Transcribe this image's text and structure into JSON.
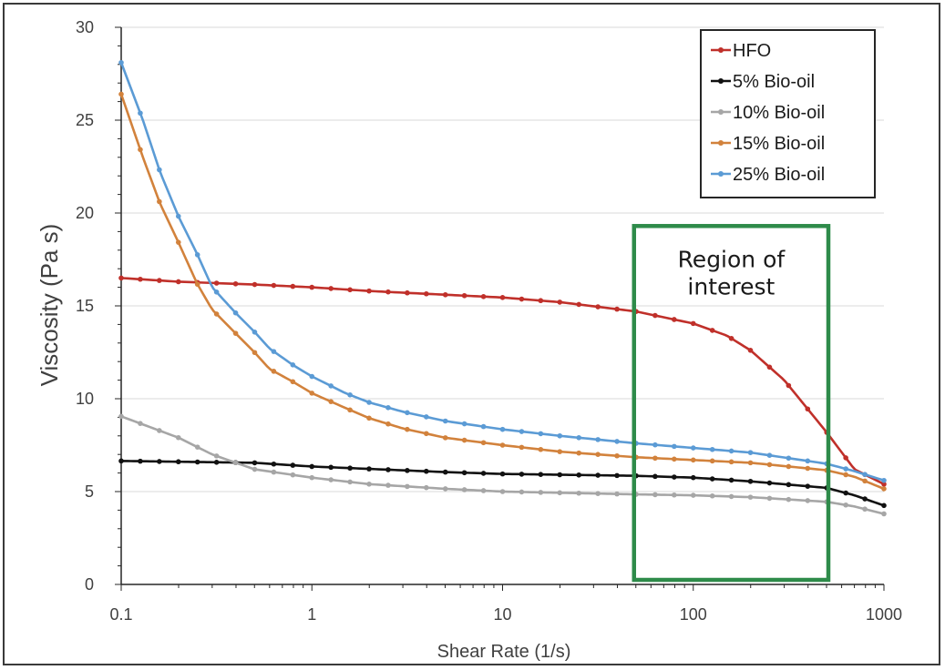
{
  "chart_data": {
    "type": "line",
    "title": "",
    "xlabel": "Shear Rate (1/s)",
    "ylabel": "Viscosity (Pa s)",
    "x_scale": "log",
    "xlim": [
      0.1,
      1000
    ],
    "ylim": [
      0,
      30
    ],
    "x_ticks": [
      0.1,
      1,
      10,
      100,
      1000
    ],
    "x_tick_labels": [
      "0.1",
      "1",
      "10",
      "100",
      "1000"
    ],
    "y_ticks": [
      0,
      5,
      10,
      15,
      20,
      25,
      30
    ],
    "y_tick_labels": [
      "0",
      "5",
      "10",
      "15",
      "20",
      "25",
      "30"
    ],
    "grid": "horizontal",
    "legend_position": "top-right",
    "series": [
      {
        "name": "HFO",
        "color": "#c0302a",
        "points": [
          [
            0.1,
            16.5
          ],
          [
            0.2,
            16.3
          ],
          [
            0.5,
            16.15
          ],
          [
            1,
            16.0
          ],
          [
            2,
            15.8
          ],
          [
            5,
            15.6
          ],
          [
            10,
            15.45
          ],
          [
            20,
            15.2
          ],
          [
            50,
            14.7
          ],
          [
            100,
            14.05
          ],
          [
            150,
            13.4
          ],
          [
            200,
            12.6
          ],
          [
            300,
            11.0
          ],
          [
            500,
            8.2
          ],
          [
            700,
            6.2
          ],
          [
            1000,
            5.4
          ]
        ]
      },
      {
        "name": "5% Bio-oil",
        "color": "#111111",
        "points": [
          [
            0.1,
            6.65
          ],
          [
            0.5,
            6.55
          ],
          [
            1,
            6.35
          ],
          [
            5,
            6.05
          ],
          [
            10,
            5.95
          ],
          [
            50,
            5.85
          ],
          [
            100,
            5.75
          ],
          [
            200,
            5.55
          ],
          [
            500,
            5.2
          ],
          [
            700,
            4.8
          ],
          [
            1000,
            4.25
          ]
        ]
      },
      {
        "name": "10% Bio-oil",
        "color": "#a6a6a6",
        "points": [
          [
            0.1,
            9.05
          ],
          [
            0.2,
            7.9
          ],
          [
            0.3,
            7.0
          ],
          [
            0.5,
            6.2
          ],
          [
            1,
            5.75
          ],
          [
            2,
            5.4
          ],
          [
            5,
            5.15
          ],
          [
            10,
            5.0
          ],
          [
            50,
            4.85
          ],
          [
            100,
            4.8
          ],
          [
            200,
            4.7
          ],
          [
            500,
            4.45
          ],
          [
            700,
            4.2
          ],
          [
            1000,
            3.8
          ]
        ]
      },
      {
        "name": "15% Bio-oil",
        "color": "#d2823c",
        "points": [
          [
            0.1,
            26.4
          ],
          [
            0.13,
            23.0
          ],
          [
            0.16,
            20.5
          ],
          [
            0.2,
            18.4
          ],
          [
            0.25,
            16.2
          ],
          [
            0.3,
            14.8
          ],
          [
            0.4,
            13.5
          ],
          [
            0.5,
            12.5
          ],
          [
            0.6,
            11.6
          ],
          [
            0.8,
            10.9
          ],
          [
            1,
            10.3
          ],
          [
            1.5,
            9.5
          ],
          [
            2,
            8.95
          ],
          [
            3,
            8.4
          ],
          [
            5,
            7.9
          ],
          [
            10,
            7.5
          ],
          [
            20,
            7.15
          ],
          [
            50,
            6.85
          ],
          [
            100,
            6.7
          ],
          [
            200,
            6.55
          ],
          [
            500,
            6.15
          ],
          [
            700,
            5.8
          ],
          [
            1000,
            5.15
          ]
        ]
      },
      {
        "name": "25% Bio-oil",
        "color": "#5b9bd5",
        "points": [
          [
            0.1,
            28.1
          ],
          [
            0.13,
            25.0
          ],
          [
            0.16,
            22.2
          ],
          [
            0.2,
            19.8
          ],
          [
            0.25,
            17.8
          ],
          [
            0.3,
            16.0
          ],
          [
            0.4,
            14.6
          ],
          [
            0.5,
            13.6
          ],
          [
            0.6,
            12.7
          ],
          [
            0.8,
            11.8
          ],
          [
            1,
            11.2
          ],
          [
            1.5,
            10.3
          ],
          [
            2,
            9.8
          ],
          [
            3,
            9.3
          ],
          [
            5,
            8.8
          ],
          [
            10,
            8.35
          ],
          [
            20,
            8.0
          ],
          [
            50,
            7.6
          ],
          [
            100,
            7.35
          ],
          [
            200,
            7.1
          ],
          [
            500,
            6.5
          ],
          [
            700,
            6.1
          ],
          [
            1000,
            5.6
          ]
        ]
      }
    ],
    "annotations": [
      {
        "text": "Region of interest",
        "lines": [
          "Region of",
          "interest"
        ],
        "x_range": [
          50,
          500
        ],
        "y_range": [
          0,
          19.3
        ],
        "color": "#2e8b4a"
      }
    ]
  }
}
